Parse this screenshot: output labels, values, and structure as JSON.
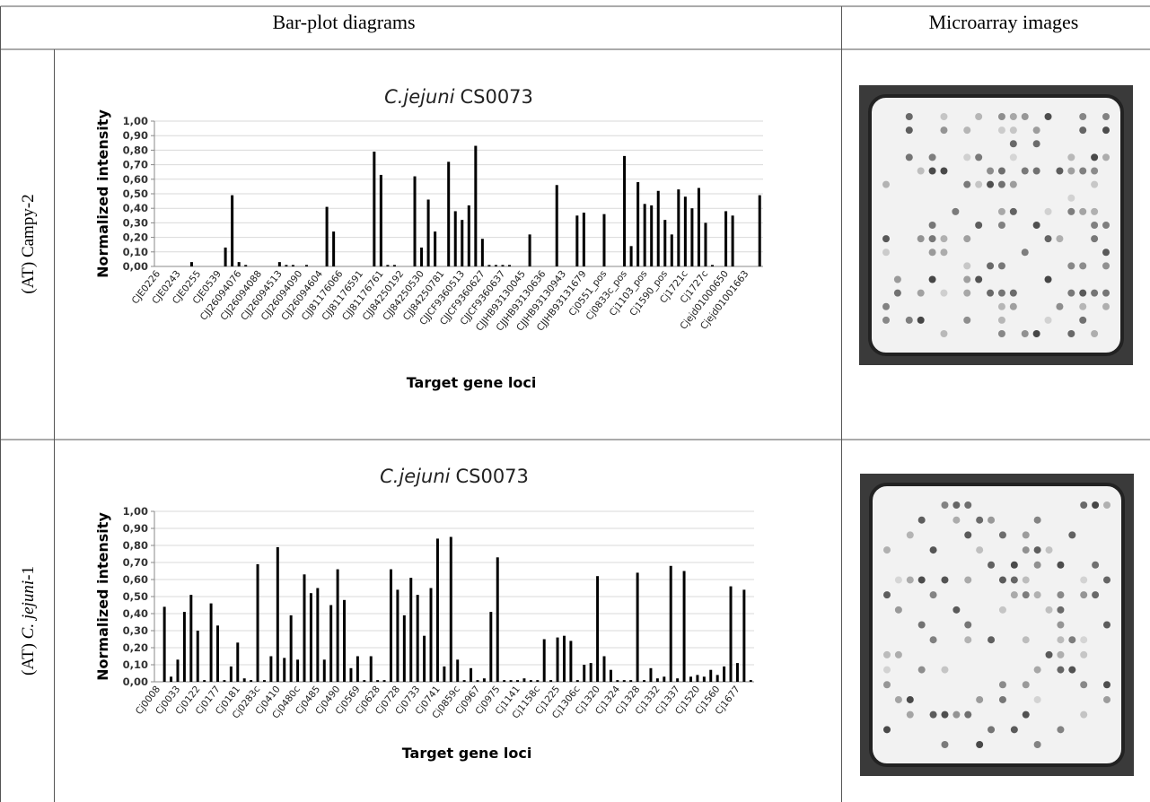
{
  "table": {
    "headers": [
      "Bar-plot diagrams",
      "Microarray images"
    ],
    "rows": [
      [
        "(AT) Campy-2"
      ],
      [
        "(AT) ",
        "C. jejuni",
        "-1"
      ]
    ]
  },
  "chart_data": [
    {
      "type": "bar",
      "title_italic": "C.jejuni",
      "title": "CS0073",
      "y_label": "Normalized intensity",
      "x_label": "Target gene loci",
      "color": "#000000",
      "grid": true,
      "categories": [
        "CJE0226",
        null,
        null,
        "CJE0243",
        null,
        null,
        "CJE0255",
        null,
        null,
        "CJE0539",
        null,
        null,
        "CJJ26094076",
        null,
        null,
        "CJJ26094088",
        null,
        null,
        "CJJ26094513",
        null,
        null,
        "CJJ26094090",
        null,
        null,
        "CJJ26094604",
        null,
        null,
        "CJJ81176066",
        null,
        null,
        "CJJ81176591",
        null,
        null,
        "CJJ81176761",
        null,
        null,
        "CJJ84250192",
        null,
        null,
        "CJJ84250530",
        null,
        null,
        "CJJ84250781",
        null,
        null,
        "CJJCF9360513",
        null,
        null,
        "CJJCF9360627",
        null,
        null,
        "CJJCF9360637",
        null,
        null,
        "CJJHB93130045",
        null,
        null,
        "CJJHB93130636",
        null,
        null,
        "CJJHB93130943",
        null,
        null,
        "CJJHB93131679",
        null,
        null,
        "Cj0551_pos",
        null,
        null,
        "Cj0833c_pos",
        null,
        null,
        "Cj1103_pos",
        null,
        null,
        "Cj1590_pos",
        null,
        null,
        "Cj1721c",
        null,
        null,
        "Cj1727c",
        null,
        null,
        "Cjejd01000650",
        null,
        null,
        "Cjejd01001663",
        null,
        null
      ],
      "values": [
        0,
        0,
        0,
        0,
        0,
        0.03,
        0,
        0,
        0,
        0,
        0.13,
        0.49,
        0.03,
        0.01,
        0,
        0,
        0,
        0,
        0.03,
        0.01,
        0.01,
        0,
        0.01,
        0,
        0,
        0.41,
        0.24,
        0,
        0,
        0,
        0,
        0,
        0.79,
        0.63,
        0.01,
        0.01,
        0,
        0,
        0.62,
        0.13,
        0.46,
        0.24,
        0,
        0.72,
        0.38,
        0.32,
        0.42,
        0.83,
        0.19,
        0.01,
        0.01,
        0.01,
        0.01,
        0,
        0,
        0.22,
        0,
        0,
        0,
        0.56,
        0,
        0,
        0.35,
        0.37,
        0,
        0,
        0.36,
        0,
        0,
        0.76,
        0.14,
        0.58,
        0.43,
        0.42,
        0.52,
        0.32,
        0.22,
        0.53,
        0.48,
        0.4,
        0.54,
        0.3,
        0.01,
        0,
        0.38,
        0.35,
        0,
        0,
        0,
        0.49
      ],
      "ylim": [
        0,
        1
      ],
      "yticks": [
        {
          "value": 0,
          "label": "0,00"
        },
        {
          "value": 0.1,
          "label": "0,10"
        },
        {
          "value": 0.2,
          "label": "0,20"
        },
        {
          "value": 0.3,
          "label": "0,30"
        },
        {
          "value": 0.4,
          "label": "0,40"
        },
        {
          "value": 0.5,
          "label": "0,50"
        },
        {
          "value": 0.6,
          "label": "0,60"
        },
        {
          "value": 0.7,
          "label": "0,70"
        },
        {
          "value": 0.8,
          "label": "0,80"
        },
        {
          "value": 0.9,
          "label": "0,90"
        },
        {
          "value": 1,
          "label": "1,00"
        }
      ]
    },
    {
      "type": "bar",
      "title_italic": "C.jejuni",
      "title": "CS0073",
      "y_label": "Normalized intensity",
      "x_label": "Target gene loci",
      "color": "#000000",
      "grid": true,
      "categories": [
        "Cj0008",
        null,
        null,
        "Cj0033",
        null,
        null,
        "Cj0122",
        null,
        null,
        "Cj0177",
        null,
        null,
        "Cj0181",
        null,
        null,
        "Cj0283c",
        null,
        null,
        "Cj0410",
        null,
        null,
        "Cj0480c",
        null,
        null,
        "Cj0485",
        null,
        null,
        "Cj0490",
        null,
        null,
        "Cj0569",
        null,
        null,
        "Cj0628",
        null,
        null,
        "Cj0728",
        null,
        null,
        "Cj0733",
        null,
        null,
        "Cj0741",
        null,
        null,
        "Cj0859c",
        null,
        null,
        "Cj0967",
        null,
        null,
        "Cj0975",
        null,
        null,
        "Cj1141",
        null,
        null,
        "Cj1158c",
        null,
        null,
        "Cj1225",
        null,
        null,
        "Cj1306c",
        null,
        null,
        "Cj1320",
        null,
        null,
        "Cj1324",
        null,
        null,
        "Cj1328",
        null,
        null,
        "Cj1332",
        null,
        null,
        "Cj1337",
        null,
        null,
        "Cj1520",
        null,
        null,
        "Cj1560",
        null,
        null,
        "Cj1677",
        null,
        null
      ],
      "values": [
        0,
        0.44,
        0.03,
        0.13,
        0.41,
        0.51,
        0.3,
        0.01,
        0.46,
        0.33,
        0.01,
        0.09,
        0.23,
        0.02,
        0.01,
        0.69,
        0.01,
        0.15,
        0.79,
        0.14,
        0.39,
        0.13,
        0.63,
        0.52,
        0.55,
        0.13,
        0.45,
        0.66,
        0.48,
        0.08,
        0.15,
        0.01,
        0.15,
        0.01,
        0.01,
        0.66,
        0.54,
        0.39,
        0.61,
        0.51,
        0.27,
        0.55,
        0.84,
        0.09,
        0.85,
        0.13,
        0.01,
        0.08,
        0.01,
        0.02,
        0.41,
        0.73,
        0.01,
        0.01,
        0.01,
        0.02,
        0.01,
        0.01,
        0.25,
        0.01,
        0.26,
        0.27,
        0.24,
        0.01,
        0.1,
        0.11,
        0.62,
        0.15,
        0.07,
        0.01,
        0.01,
        0.01,
        0.64,
        0.01,
        0.08,
        0.02,
        0.03,
        0.68,
        0.02,
        0.65,
        0.03,
        0.04,
        0.03,
        0.07,
        0.04,
        0.09,
        0.56,
        0.11,
        0.54,
        0.01
      ],
      "ylim": [
        0,
        1
      ],
      "yticks": [
        {
          "value": 0,
          "label": "0,00"
        },
        {
          "value": 0.1,
          "label": "0,10"
        },
        {
          "value": 0.2,
          "label": "0,20"
        },
        {
          "value": 0.3,
          "label": "0,30"
        },
        {
          "value": 0.4,
          "label": "0,40"
        },
        {
          "value": 0.5,
          "label": "0,50"
        },
        {
          "value": 0.6,
          "label": "0,60"
        },
        {
          "value": 0.7,
          "label": "0,70"
        },
        {
          "value": 0.8,
          "label": "0,80"
        },
        {
          "value": 0.9,
          "label": "0,90"
        },
        {
          "value": 1,
          "label": "1,00"
        }
      ]
    }
  ]
}
